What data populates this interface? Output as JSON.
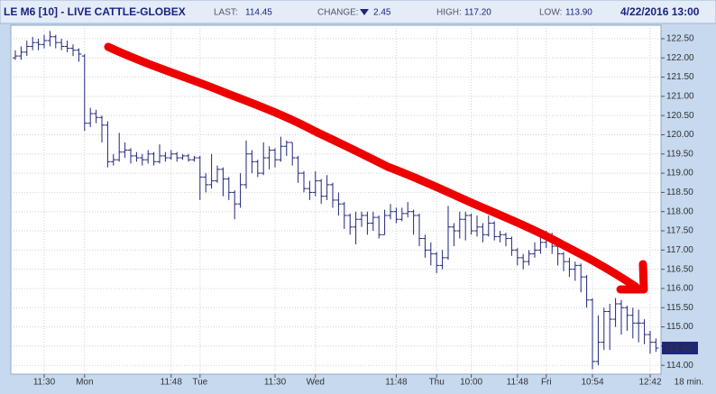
{
  "chart_data": {
    "type": "ohlc",
    "header": {
      "title": "LE M6 [10] - LIVE CATTLE-GLOBEX",
      "last_caption": "LAST:",
      "last": "114.45",
      "change_caption": "CHANGE:",
      "change": "2.45",
      "high_caption": "HIGH:",
      "high": "117.20",
      "low_caption": "LOW:",
      "low": "113.90",
      "datetime": "4/22/2016 13:00"
    },
    "interval_label": "18 min.",
    "color": "#1f2677",
    "grid": true,
    "ylim": [
      113.77,
      122.85
    ],
    "yticks": [
      {
        "value": 114,
        "label": "114.00"
      },
      {
        "value": 114.5,
        "label": "114.50"
      },
      {
        "value": 115,
        "label": "115.00"
      },
      {
        "value": 115.5,
        "label": "115.50"
      },
      {
        "value": 116,
        "label": "116.00"
      },
      {
        "value": 116.5,
        "label": "116.50"
      },
      {
        "value": 117,
        "label": "117.00"
      },
      {
        "value": 117.5,
        "label": "117.50"
      },
      {
        "value": 118,
        "label": "118.00"
      },
      {
        "value": 118.5,
        "label": "118.50"
      },
      {
        "value": 119,
        "label": "119.00"
      },
      {
        "value": 119.5,
        "label": "119.50"
      },
      {
        "value": 120,
        "label": "120.00"
      },
      {
        "value": 120.5,
        "label": "120.50"
      },
      {
        "value": 121,
        "label": "121.00"
      },
      {
        "value": 121.5,
        "label": "121.50"
      },
      {
        "value": 122,
        "label": "122.00"
      },
      {
        "value": 122.5,
        "label": "122.50"
      }
    ],
    "categories": [
      null,
      null,
      null,
      null,
      null,
      "11:30",
      null,
      null,
      null,
      null,
      null,
      null,
      "Mon",
      null,
      null,
      null,
      null,
      null,
      null,
      null,
      null,
      null,
      null,
      null,
      null,
      null,
      null,
      "11:48",
      null,
      null,
      null,
      null,
      "Tue",
      null,
      null,
      null,
      null,
      null,
      null,
      null,
      null,
      null,
      null,
      null,
      null,
      "11:30",
      null,
      null,
      null,
      null,
      null,
      null,
      "Wed",
      null,
      null,
      null,
      null,
      null,
      null,
      null,
      null,
      null,
      null,
      null,
      null,
      null,
      "11:48",
      null,
      null,
      null,
      null,
      null,
      null,
      "Thu",
      null,
      null,
      null,
      null,
      null,
      "10:00",
      null,
      null,
      null,
      null,
      null,
      null,
      null,
      "11:48",
      null,
      null,
      null,
      null,
      "Fri",
      null,
      null,
      null,
      null,
      null,
      null,
      null,
      "10:54",
      null,
      null,
      null,
      null,
      null,
      null,
      null,
      null,
      null,
      "12:42",
      null
    ],
    "open": [
      122.0,
      122.05,
      122.15,
      122.3,
      122.4,
      122.35,
      122.45,
      122.55,
      122.4,
      122.3,
      122.25,
      122.2,
      122.05,
      120.3,
      120.55,
      120.45,
      120.25,
      119.3,
      119.35,
      119.55,
      119.6,
      119.45,
      119.4,
      119.35,
      119.5,
      119.3,
      119.45,
      119.4,
      119.5,
      119.4,
      119.45,
      119.35,
      119.4,
      118.9,
      118.7,
      118.8,
      119.1,
      118.85,
      118.5,
      118.2,
      118.7,
      119.5,
      119.3,
      119.0,
      119.4,
      119.6,
      119.35,
      119.7,
      119.8,
      119.4,
      119.0,
      118.6,
      118.5,
      118.8,
      118.4,
      118.7,
      118.3,
      118.2,
      117.9,
      117.6,
      117.8,
      117.9,
      117.7,
      117.85,
      117.4,
      117.9,
      118.0,
      117.8,
      117.95,
      118.0,
      117.9,
      117.3,
      117.0,
      116.9,
      116.6,
      116.8,
      117.6,
      117.5,
      117.8,
      117.9,
      117.5,
      117.6,
      117.4,
      117.7,
      117.35,
      117.4,
      117.3,
      117.0,
      116.8,
      116.7,
      116.9,
      117.0,
      117.2,
      117.4,
      117.1,
      116.9,
      116.7,
      116.5,
      116.6,
      116.3,
      115.7,
      114.1,
      114.6,
      115.4,
      115.2,
      115.6,
      115.5,
      115.3,
      115.1,
      115.1,
      114.8,
      114.6
    ],
    "high": [
      122.2,
      122.3,
      122.45,
      122.55,
      122.5,
      122.6,
      122.7,
      122.6,
      122.5,
      122.45,
      122.35,
      122.25,
      122.1,
      120.7,
      120.65,
      120.5,
      120.35,
      119.5,
      120.05,
      119.8,
      119.65,
      119.55,
      119.5,
      119.6,
      119.55,
      119.75,
      119.55,
      119.6,
      119.55,
      119.5,
      119.5,
      119.45,
      119.45,
      119,
      119.5,
      119.2,
      119.15,
      118.9,
      118.55,
      119,
      119.85,
      119.6,
      119.35,
      119.8,
      119.7,
      119.65,
      119.95,
      119.85,
      119.8,
      119.45,
      119.05,
      118.8,
      119.05,
      118.85,
      118.95,
      118.75,
      118.5,
      118.25,
      117.95,
      118,
      118,
      118,
      118,
      117.9,
      118.05,
      118.2,
      118.1,
      118.1,
      118.25,
      118.05,
      117.95,
      117.4,
      117.2,
      116.95,
      117,
      118.15,
      117.7,
      118,
      118,
      117.95,
      117.9,
      117.7,
      117.9,
      117.75,
      117.5,
      117.45,
      117.35,
      117.05,
      116.9,
      117,
      117.2,
      117.4,
      117.5,
      117.45,
      117.2,
      116.95,
      116.8,
      116.7,
      116.65,
      116.35,
      115.75,
      115.3,
      115.5,
      115.6,
      115.75,
      115.7,
      115.55,
      115.5,
      115.45,
      115.2,
      114.9,
      114.7
    ],
    "low": [
      121.95,
      121.95,
      122.05,
      122.2,
      122.2,
      122.25,
      122.3,
      122.25,
      122.2,
      122.15,
      122.05,
      121.9,
      120.1,
      120.2,
      120.3,
      119.8,
      119.15,
      119.2,
      119.3,
      119.4,
      119.25,
      119.3,
      119.2,
      119.25,
      119.2,
      119.25,
      119.3,
      119.35,
      119.3,
      119.35,
      119.3,
      119.3,
      118.3,
      118.5,
      118.6,
      118.75,
      118.4,
      118.3,
      117.8,
      118.1,
      118.6,
      119,
      118.9,
      118.95,
      119.1,
      119.15,
      119.3,
      119.45,
      119.2,
      118.75,
      118.5,
      118.3,
      118.4,
      118.2,
      118.3,
      118.1,
      117.9,
      117.55,
      117.4,
      117.15,
      117.6,
      117.4,
      117.5,
      117.3,
      117.4,
      117.8,
      117.7,
      117.75,
      117.85,
      117.4,
      117.1,
      116.8,
      116.6,
      116.4,
      116.5,
      116.75,
      117.1,
      117.3,
      117.25,
      117.4,
      117.35,
      117.2,
      117.35,
      117.25,
      117.2,
      117.1,
      116.85,
      116.6,
      116.5,
      116.6,
      116.8,
      116.9,
      117.05,
      116.9,
      116.6,
      116.45,
      116.3,
      116.2,
      115.9,
      115.5,
      113.9,
      114,
      114.4,
      114.4,
      115,
      114.8,
      114.9,
      114.7,
      114.6,
      114.55,
      114.3,
      114.35
    ],
    "close": [
      122.05,
      122.15,
      122.3,
      122.4,
      122.35,
      122.45,
      122.55,
      122.4,
      122.3,
      122.25,
      122.2,
      122.1,
      120.3,
      120.55,
      120.45,
      120.25,
      119.3,
      119.35,
      119.55,
      119.6,
      119.45,
      119.4,
      119.35,
      119.5,
      119.3,
      119.45,
      119.4,
      119.5,
      119.4,
      119.45,
      119.35,
      119.4,
      118.9,
      118.7,
      118.8,
      119.1,
      118.85,
      118.5,
      118.2,
      118.7,
      119.5,
      119.3,
      119,
      119.4,
      119.6,
      119.35,
      119.7,
      119.8,
      119.4,
      119,
      118.6,
      118.5,
      118.8,
      118.4,
      118.7,
      118.3,
      118.2,
      117.9,
      117.6,
      117.8,
      117.9,
      117.7,
      117.85,
      117.4,
      117.9,
      118,
      117.8,
      117.95,
      118,
      117.9,
      117.3,
      117,
      116.9,
      116.6,
      116.8,
      117.6,
      117.5,
      117.8,
      117.9,
      117.5,
      117.6,
      117.4,
      117.7,
      117.35,
      117.4,
      117.3,
      117,
      116.8,
      116.7,
      116.9,
      117,
      117.2,
      117.4,
      117.1,
      116.9,
      116.7,
      116.5,
      116.6,
      116.3,
      115.7,
      114.1,
      114.6,
      115.4,
      115.2,
      115.6,
      115.5,
      115.3,
      115.1,
      115.1,
      114.8,
      114.6,
      114.45
    ]
  }
}
